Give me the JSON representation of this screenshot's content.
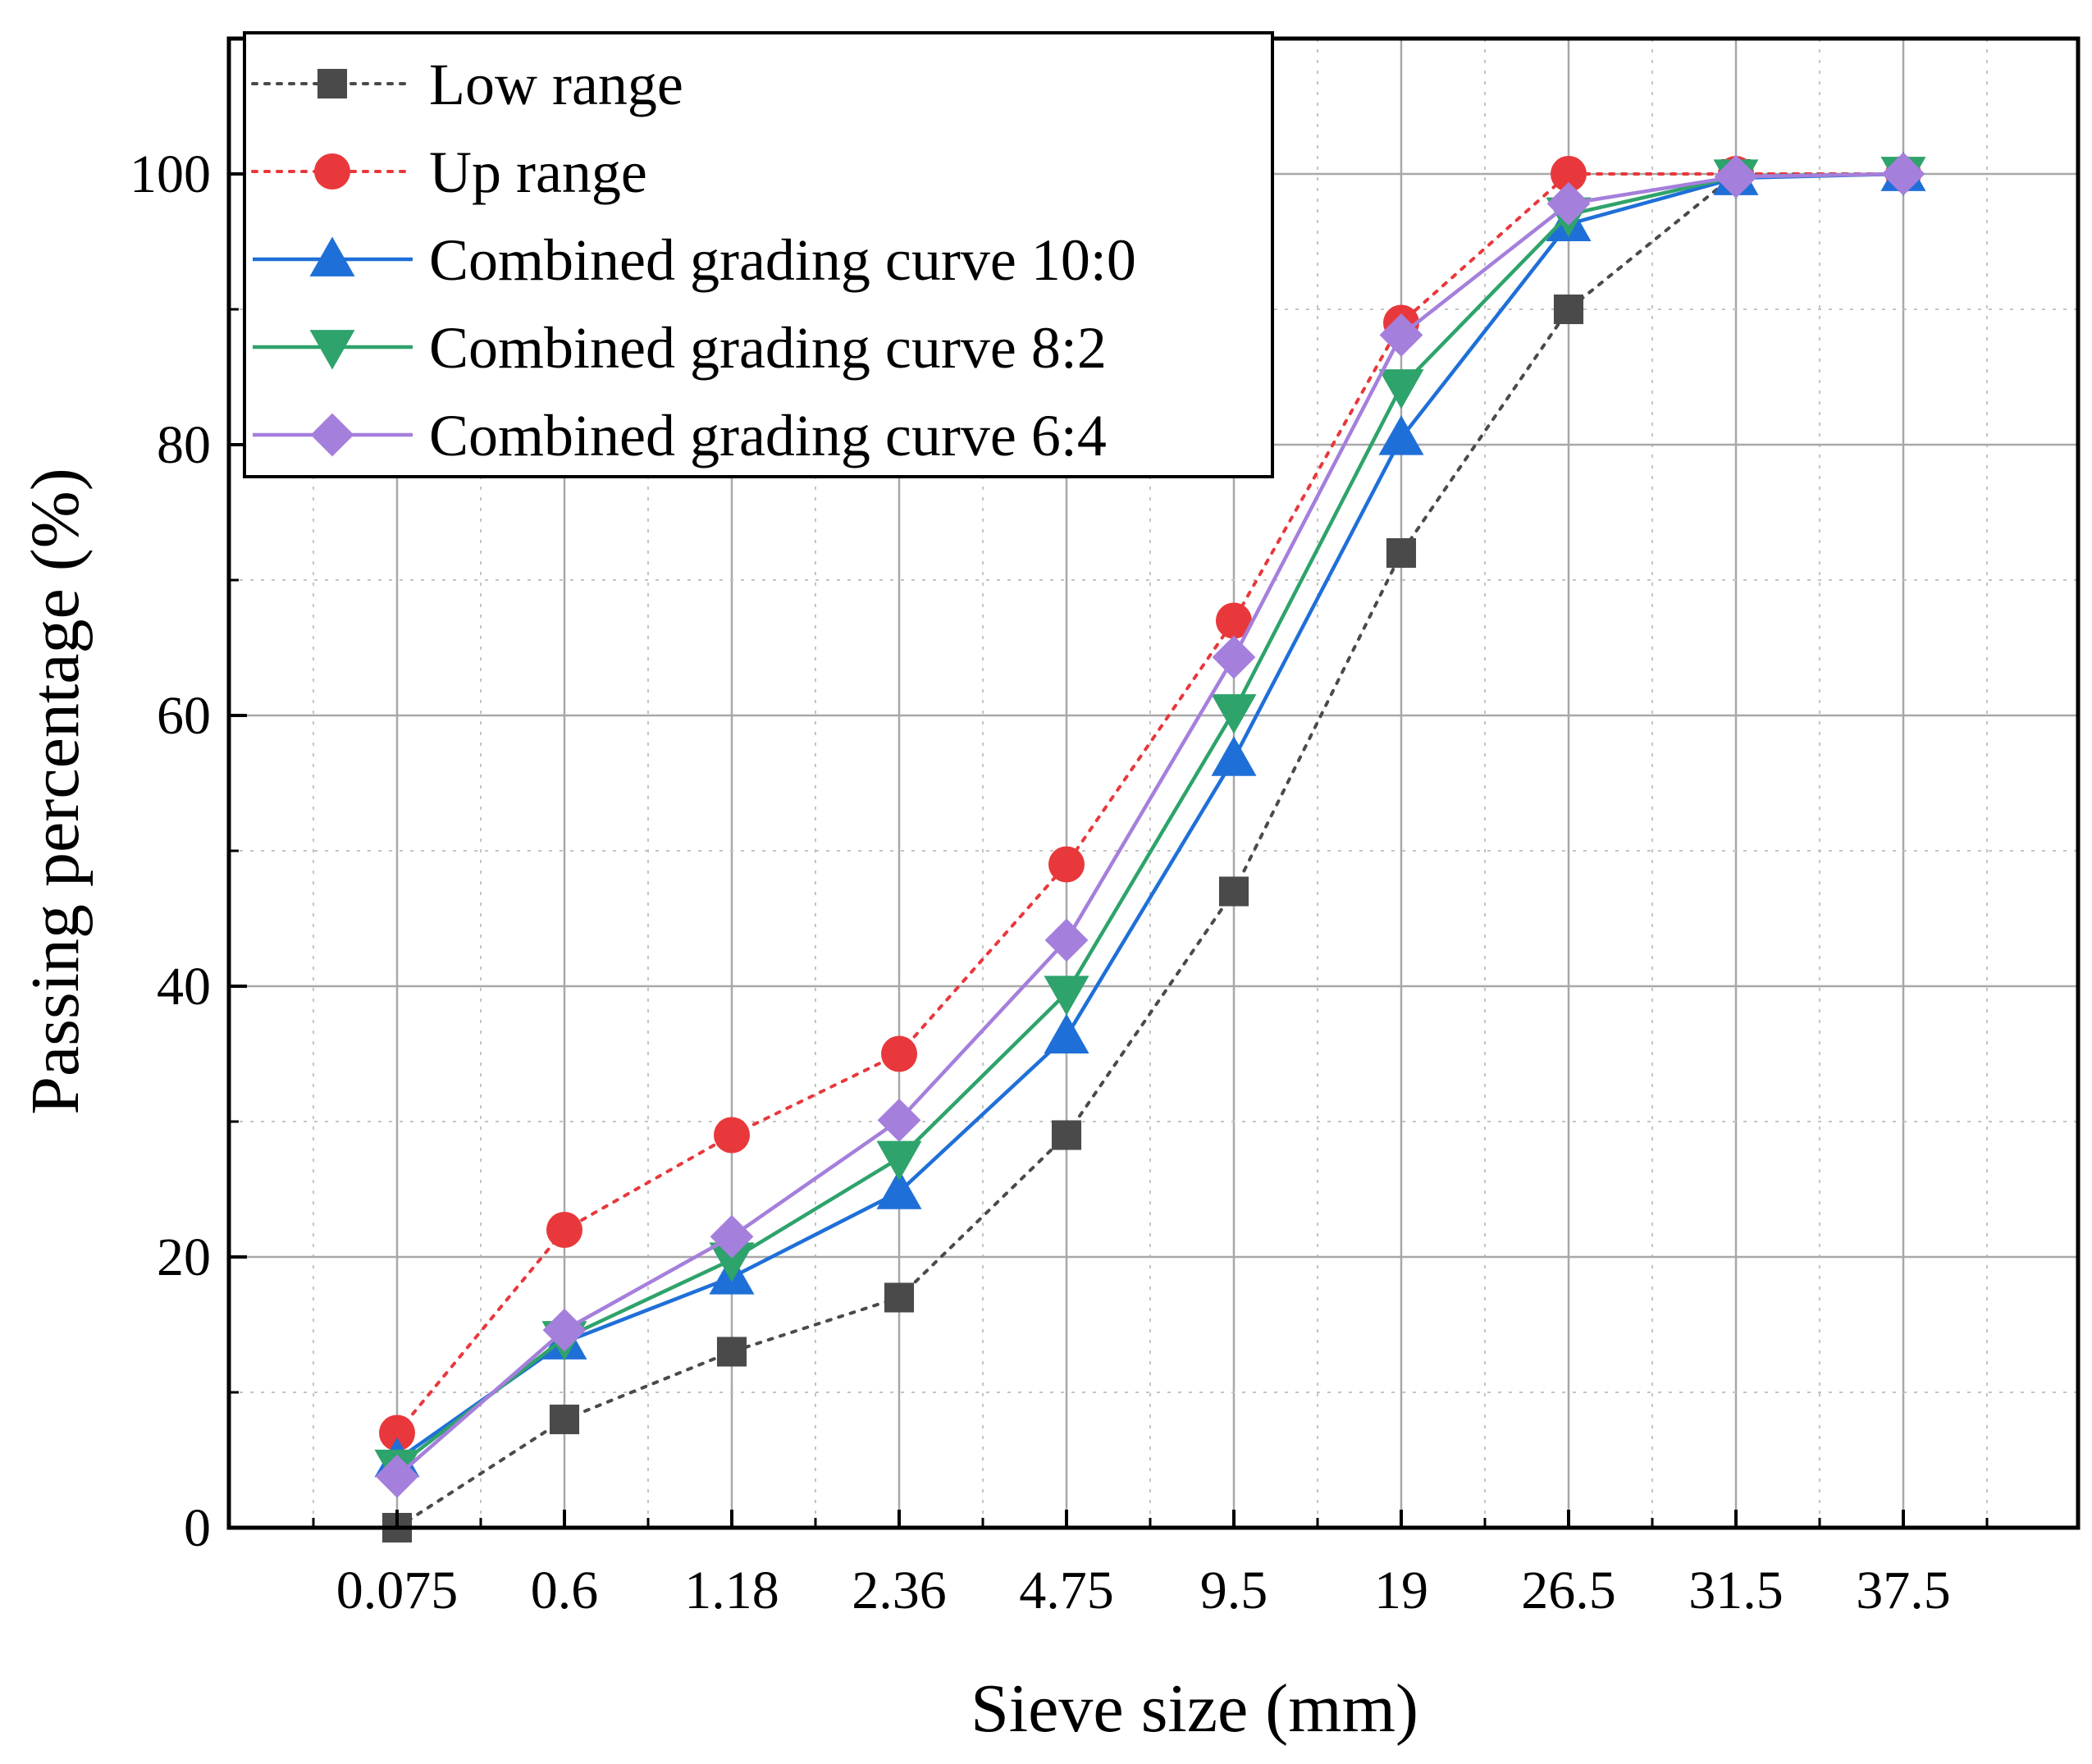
{
  "chart_data": {
    "type": "line",
    "xlabel": "Sieve size (mm)",
    "ylabel": "Passing percentage (%)",
    "categories": [
      "0.075",
      "0.6",
      "1.18",
      "2.36",
      "4.75",
      "9.5",
      "19",
      "26.5",
      "31.5",
      "37.5"
    ],
    "ylim": [
      0,
      110
    ],
    "yticks": [
      0,
      20,
      40,
      60,
      80,
      100
    ],
    "grid": true,
    "legend_position": "top-left",
    "series": [
      {
        "name": "Low range",
        "color": "#4a4a4a",
        "line_style": "dotted",
        "marker": "square",
        "values": [
          0,
          8,
          13,
          17,
          29,
          47,
          72,
          90,
          100,
          100
        ]
      },
      {
        "name": "Up range",
        "color": "#e8383c",
        "line_style": "dotted",
        "marker": "circle",
        "values": [
          7,
          22,
          29,
          35,
          49,
          67,
          89,
          100,
          100,
          100
        ]
      },
      {
        "name": "Combined grading curve 10:0",
        "color": "#1f6fd8",
        "line_style": "solid",
        "marker": "triangle-up",
        "values": [
          5,
          13.7,
          18.5,
          24.8,
          36.3,
          56.8,
          80.5,
          96.3,
          99.7,
          100
        ]
      },
      {
        "name": "Combined grading curve 8:2",
        "color": "#2ea36b",
        "line_style": "solid",
        "marker": "triangle-down",
        "values": [
          4.5,
          14,
          19.8,
          27.3,
          39.5,
          60.3,
          84.3,
          97,
          99.8,
          100
        ]
      },
      {
        "name": "Combined grading curve 6:4",
        "color": "#a57fdc",
        "line_style": "solid",
        "marker": "diamond",
        "values": [
          3.8,
          14.6,
          21.5,
          30.1,
          43.4,
          64.3,
          88.1,
          97.8,
          99.8,
          100
        ]
      }
    ]
  }
}
